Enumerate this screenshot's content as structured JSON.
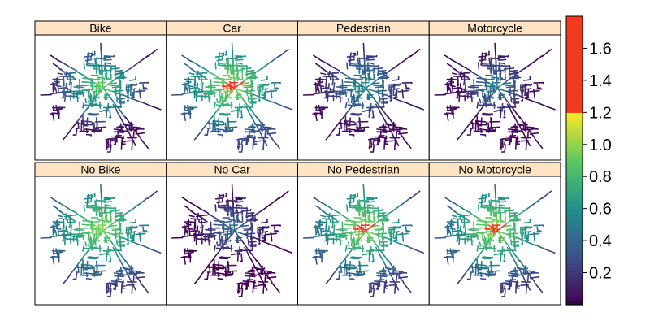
{
  "chart_data": {
    "type": "heatmap",
    "description_kind": "faceted network maps colored by value",
    "layout": {
      "rows": 2,
      "cols": 4
    },
    "panels": [
      {
        "label": "Bike",
        "pattern": "bike"
      },
      {
        "label": "Car",
        "pattern": "car"
      },
      {
        "label": "Pedestrian",
        "pattern": "pedestrian"
      },
      {
        "label": "Motorcycle",
        "pattern": "motorcycle"
      },
      {
        "label": "No  Bike",
        "pattern": "nobike"
      },
      {
        "label": "No  Car",
        "pattern": "nocar"
      },
      {
        "label": "No  Pedestrian",
        "pattern": "noped"
      },
      {
        "label": "No  Motorcycle",
        "pattern": "nomoto"
      }
    ],
    "colorbar": {
      "range": [
        0,
        1.8
      ],
      "ticks": [
        0.2,
        0.4,
        0.6,
        0.8,
        1.0,
        1.2,
        1.4,
        1.6
      ],
      "tick_labels": [
        "0.2",
        "0.4",
        "0.6",
        "0.8",
        "1.0",
        "1.2",
        "1.4",
        "1.6"
      ],
      "scale": "viridis 0–1.2, solid red above 1.2"
    },
    "colors": {
      "strip_background": "#ffe4c4",
      "viridis": [
        "#440154",
        "#3b528b",
        "#21908c",
        "#5dc863",
        "#fde725"
      ],
      "high": "#f23a1f",
      "lowest": "#2b0a45"
    }
  }
}
